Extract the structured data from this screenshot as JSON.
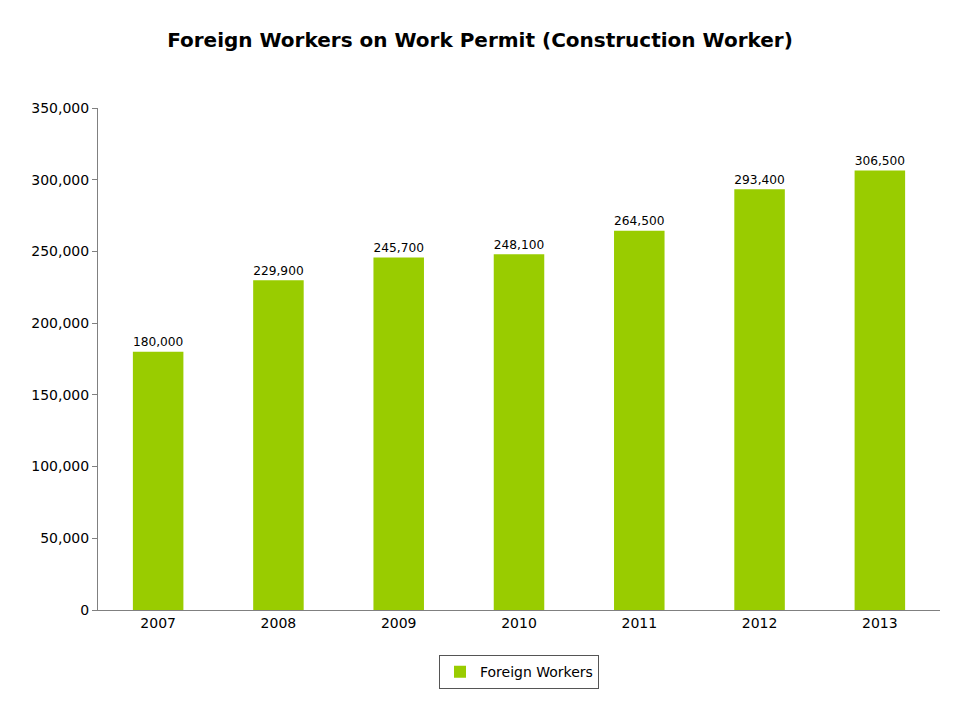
{
  "chart_data": {
    "type": "bar",
    "title": "Foreign Workers on Work Permit (Construction Worker)",
    "categories": [
      "2007",
      "2008",
      "2009",
      "2010",
      "2011",
      "2012",
      "2013"
    ],
    "series": [
      {
        "name": "Foreign Workers",
        "color": "#99cc00",
        "values": [
          180000,
          229900,
          245700,
          248100,
          264500,
          293400,
          306500
        ],
        "value_labels": [
          "180,000",
          "229,900",
          "245,700",
          "248,100",
          "264,500",
          "293,400",
          "306,500"
        ]
      }
    ],
    "ylim": [
      0,
      350000
    ],
    "yticks": [
      0,
      {
        "value": 50000,
        "label": "50,000"
      },
      {
        "value": 100000,
        "label": "100,000"
      },
      {
        "value": 150000,
        "label": "150,000"
      },
      {
        "value": 200000,
        "label": "200,000"
      },
      {
        "value": 250000,
        "label": "250,000"
      },
      {
        "value": 300000,
        "label": "300,000"
      },
      {
        "value": 350000,
        "label": "350,000"
      }
    ],
    "grid": false,
    "legend": "bottom",
    "data_labels": true
  }
}
